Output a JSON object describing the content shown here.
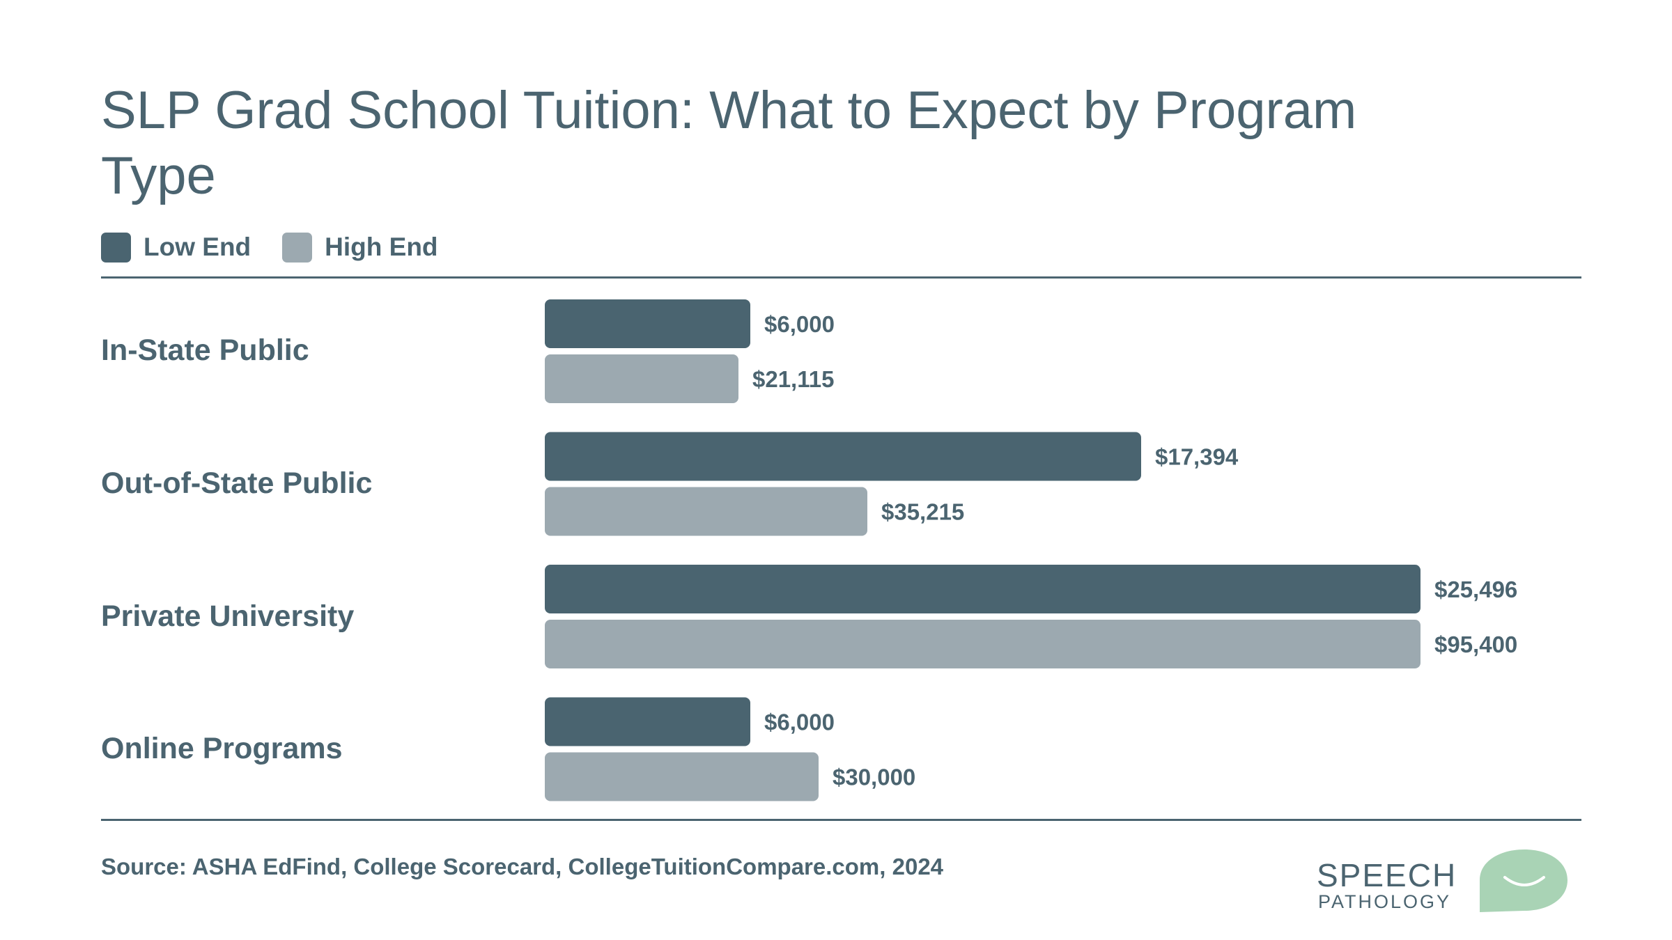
{
  "chart_data": {
    "type": "bar",
    "orientation": "horizontal",
    "title": "SLP Grad School Tuition: What to Expect by Program Type",
    "categories": [
      "In-State Public",
      "Out-of-State Public",
      "Private University",
      "Online Programs"
    ],
    "series": [
      {
        "name": "Low End",
        "color": "#4a6470",
        "values": [
          6000,
          17394,
          25496,
          6000
        ],
        "labels": [
          "$6,000",
          "$17,394",
          "$25,496",
          "$6,000"
        ]
      },
      {
        "name": "High End",
        "color": "#9ca9b0",
        "values": [
          21115,
          35215,
          95400,
          30000
        ],
        "labels": [
          "$21,115",
          "$35,215",
          "$95,400",
          "$30,000"
        ]
      }
    ],
    "legend_position": "top-left",
    "grid": false
  },
  "legend": {
    "low_label": "Low End",
    "high_label": "High End"
  },
  "source": "Source: ASHA EdFind, College Scorecard, CollegeTuitionCompare.com, 2024",
  "logo": {
    "line1": "SPEECH",
    "line2": "PATHOLOGY",
    "accent_color": "#a9d3b5"
  }
}
